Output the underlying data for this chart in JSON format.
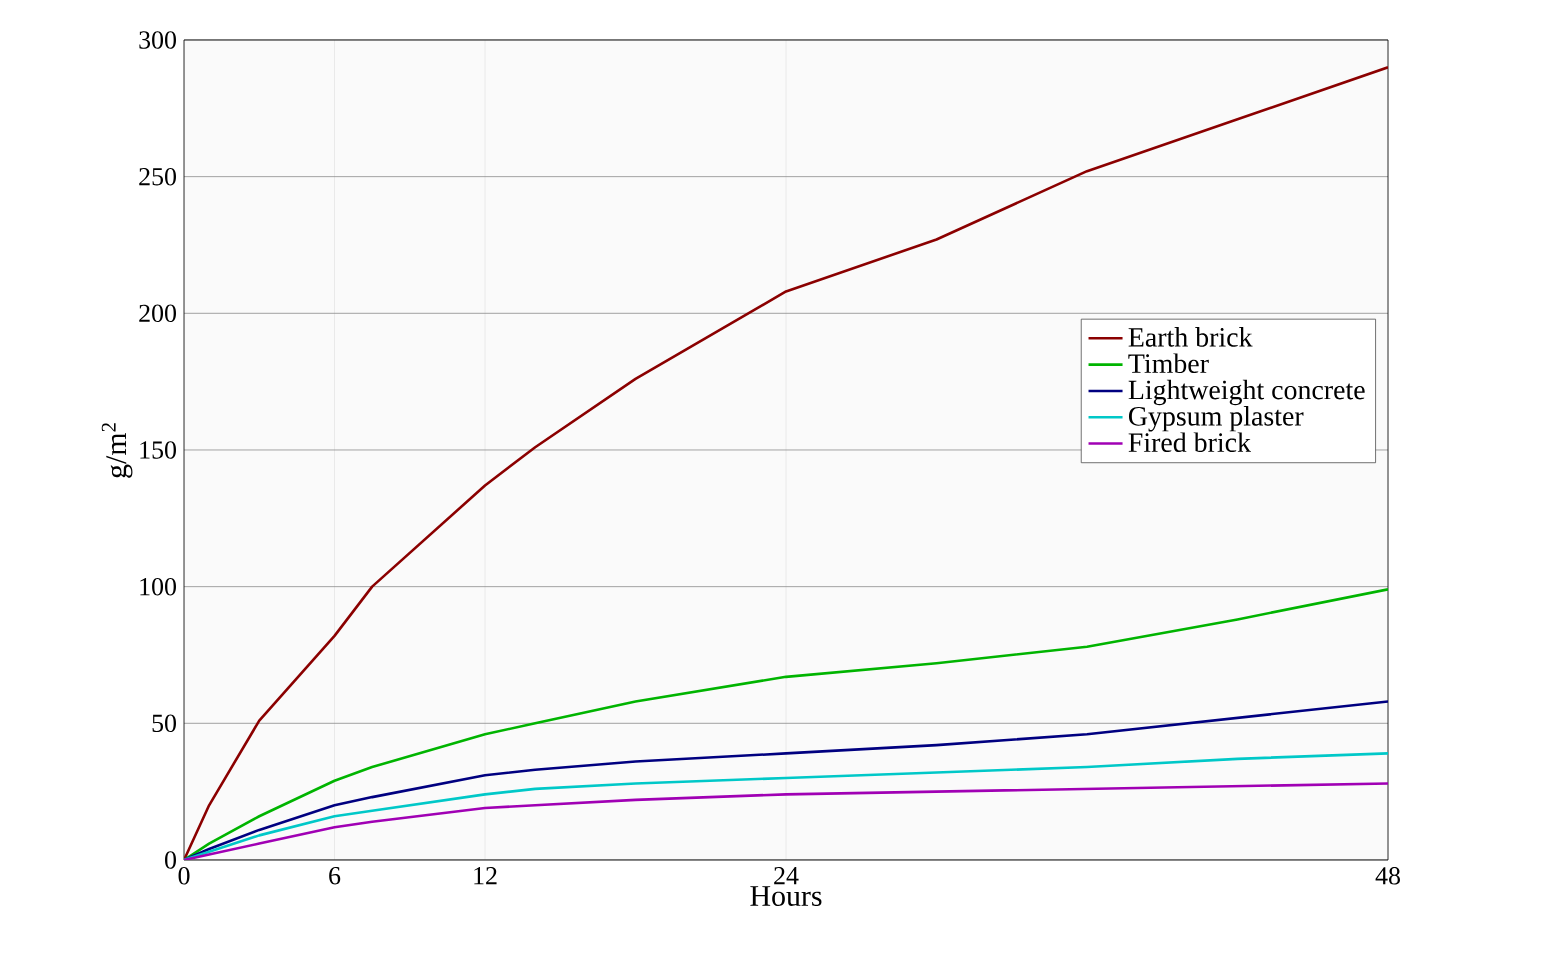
{
  "chart_data": {
    "type": "line",
    "xlabel": "Hours",
    "ylabel": "g/m$^{2}$",
    "xlim": [
      0,
      48
    ],
    "ylim": [
      0,
      300
    ],
    "xticks": [
      0,
      6,
      12,
      24,
      48
    ],
    "yticks": [
      0,
      50,
      100,
      150,
      200,
      250,
      300
    ],
    "grid": true,
    "legend": "right",
    "marker": "none",
    "line_style": "solid",
    "x": [
      0,
      1,
      3,
      6,
      7.5,
      12,
      14,
      18,
      24,
      30,
      36,
      42,
      48
    ],
    "series": [
      {
        "name": "Earth brick",
        "color": "#8b0000",
        "values": [
          0,
          20,
          51,
          82,
          100,
          137,
          151,
          176,
          208,
          227,
          252,
          271,
          290
        ]
      },
      {
        "name": "Timber",
        "color": "#00b400",
        "values": [
          0,
          6,
          16,
          29,
          34,
          46,
          50,
          58,
          67,
          72,
          78,
          88,
          99
        ]
      },
      {
        "name": "Lightweight concrete",
        "color": "#000080",
        "values": [
          0,
          4,
          11,
          20,
          23,
          31,
          33,
          36,
          39,
          42,
          46,
          52,
          58
        ]
      },
      {
        "name": "Gypsum plaster",
        "color": "#00c8c8",
        "values": [
          0,
          3,
          9,
          16,
          18,
          24,
          26,
          28,
          30,
          32,
          34,
          37,
          39
        ]
      },
      {
        "name": "Fired brick",
        "color": "#a000b4",
        "values": [
          0,
          2,
          6,
          12,
          14,
          19,
          20,
          22,
          24,
          25,
          26,
          27,
          28
        ]
      }
    ]
  }
}
